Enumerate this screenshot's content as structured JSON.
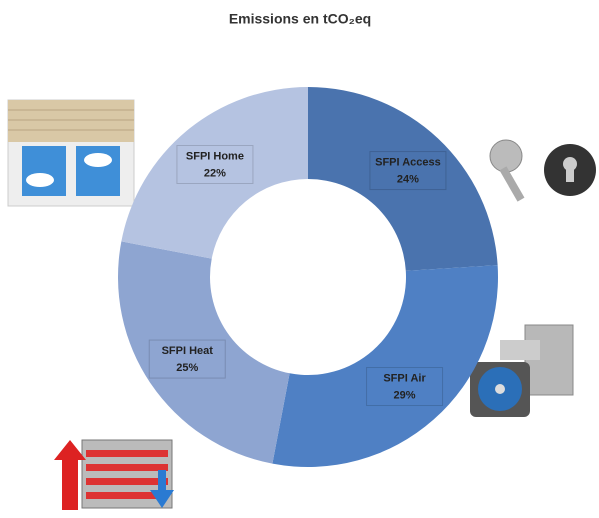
{
  "chart_data": {
    "type": "donut",
    "title": "Emissions  en tCO₂eq",
    "categories": [
      "SFPI Access",
      "SFPI Air",
      "SFPI Heat",
      "SFPI Home"
    ],
    "values": [
      24,
      29,
      25,
      22
    ],
    "value_labels": [
      "24%",
      "29%",
      "25%",
      "22%"
    ],
    "colors": [
      "#4a73ae",
      "#4f80c4",
      "#8ea5d1",
      "#b5c3e1"
    ]
  }
}
